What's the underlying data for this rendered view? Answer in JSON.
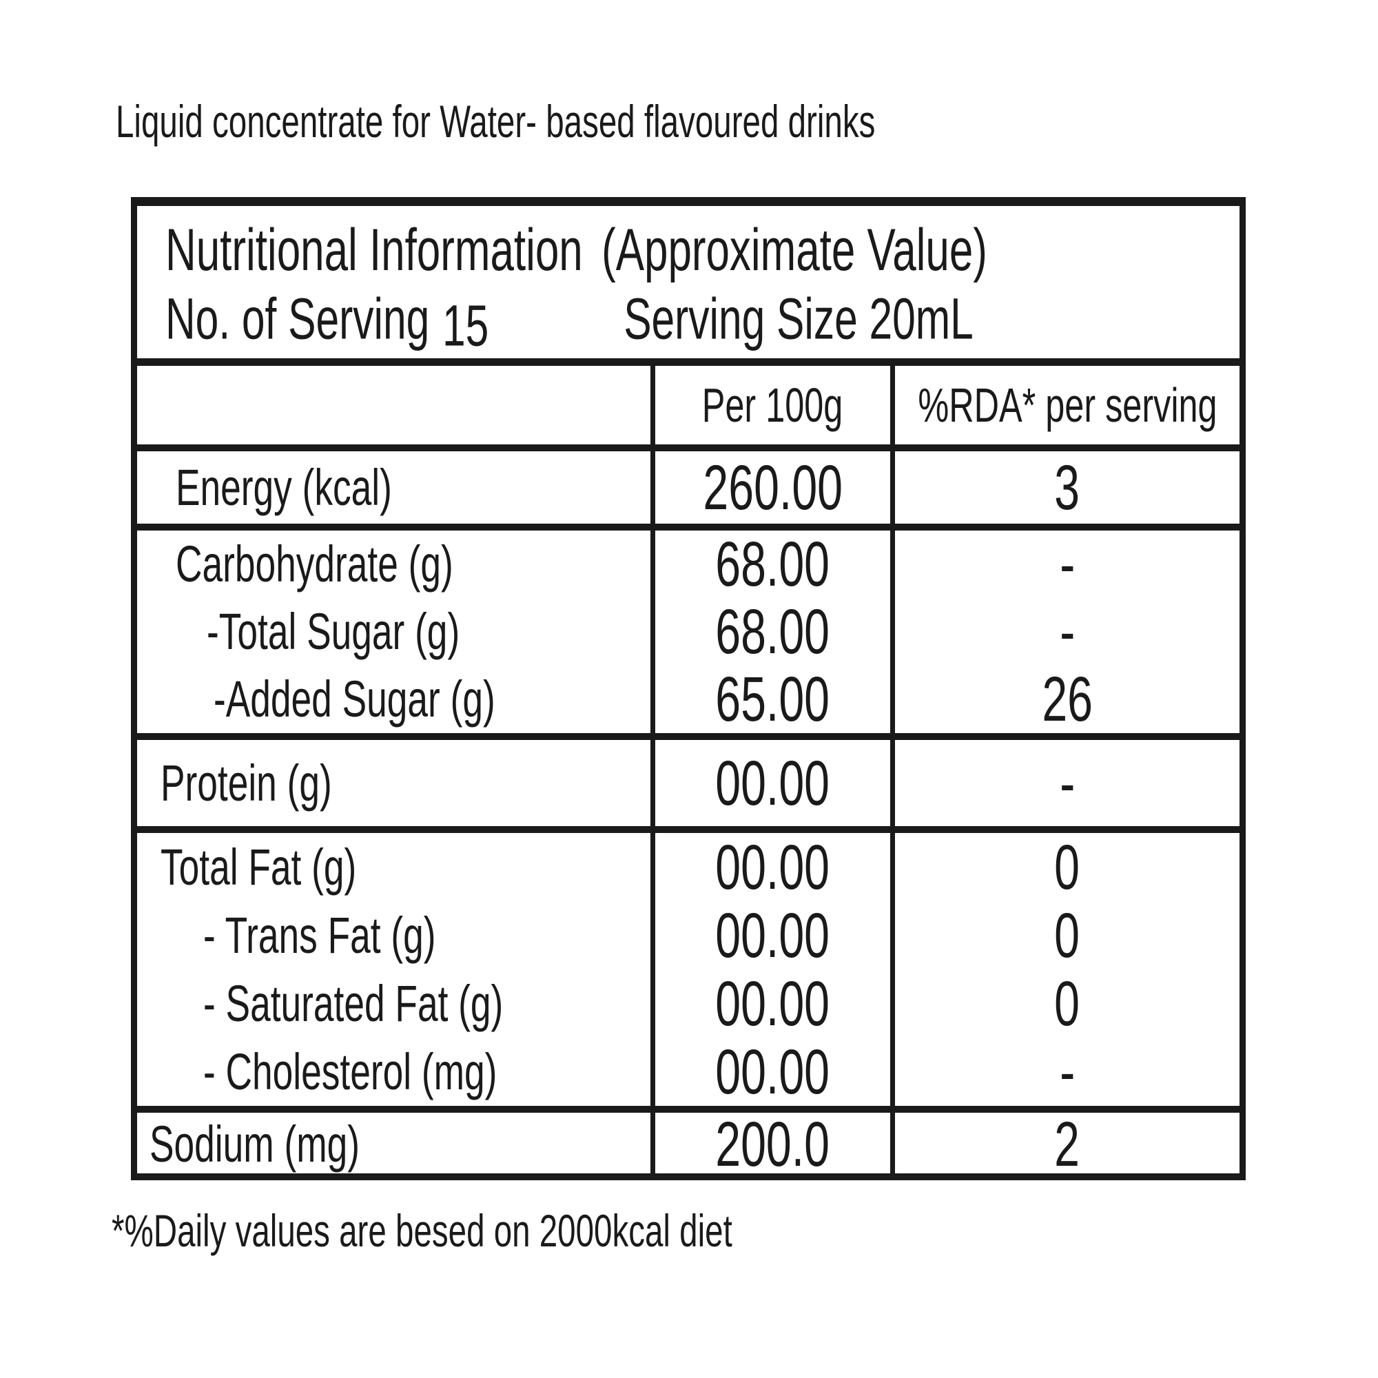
{
  "page": {
    "top_note": "Liquid concentrate for Water- based flavoured drinks",
    "footer_note": "*%Daily values are besed on 2000kcal diet"
  },
  "colors": {
    "ink": "#1a1a1a",
    "background": "#ffffff"
  },
  "table": {
    "header": {
      "title": "Nutritional Information",
      "approx": "(Approximate Value)",
      "no_of_serving_label": "No. of Serving",
      "no_of_serving_value": "15",
      "serving_size_label": "Serving Size",
      "serving_size_value": "20mL"
    },
    "columns": {
      "per100": "Per 100g",
      "rda": "%RDA* per serving"
    },
    "sections": [
      {
        "name": "energy",
        "rows": [
          {
            "label": "Energy (kcal)",
            "per100": "260.00",
            "rda": "3"
          }
        ]
      },
      {
        "name": "carbohydrate",
        "rows": [
          {
            "label": "Carbohydrate (g)",
            "per100": "68.00",
            "rda": "-"
          },
          {
            "label": "-Total Sugar (g)",
            "per100": "68.00",
            "rda": "-"
          },
          {
            "label": "-Added Sugar (g)",
            "per100": "65.00",
            "rda": "26"
          }
        ]
      },
      {
        "name": "protein",
        "rows": [
          {
            "label": "Protein (g)",
            "per100": "00.00",
            "rda": "-"
          }
        ]
      },
      {
        "name": "fat",
        "rows": [
          {
            "label": "Total Fat (g)",
            "per100": "00.00",
            "rda": "0"
          },
          {
            "label": "- Trans Fat (g)",
            "per100": "00.00",
            "rda": "0"
          },
          {
            "label": "- Saturated Fat (g)",
            "per100": "00.00",
            "rda": "0"
          },
          {
            "label": "- Cholesterol (mg)",
            "per100": "00.00",
            "rda": "-"
          }
        ]
      },
      {
        "name": "sodium",
        "rows": [
          {
            "label": "Sodium (mg)",
            "per100": "200.0",
            "rda": "2"
          }
        ]
      }
    ]
  }
}
